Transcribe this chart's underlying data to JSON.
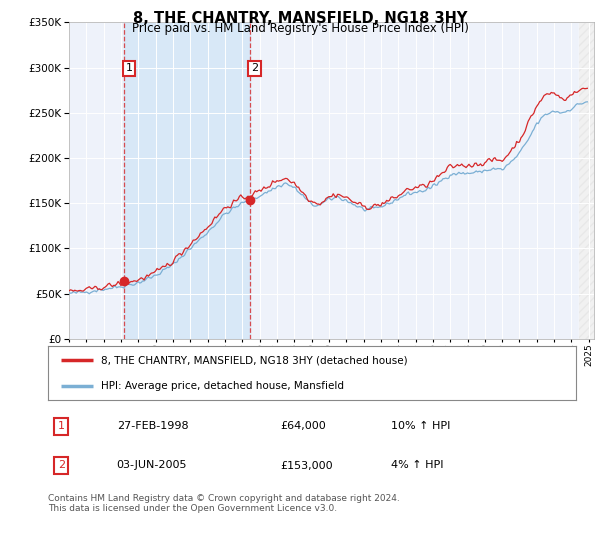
{
  "title": "8, THE CHANTRY, MANSFIELD, NG18 3HY",
  "subtitle": "Price paid vs. HM Land Registry's House Price Index (HPI)",
  "legend_line1": "8, THE CHANTRY, MANSFIELD, NG18 3HY (detached house)",
  "legend_line2": "HPI: Average price, detached house, Mansfield",
  "table_row1_date": "27-FEB-1998",
  "table_row1_price": "£64,000",
  "table_row1_hpi": "10% ↑ HPI",
  "table_row2_date": "03-JUN-2005",
  "table_row2_price": "£153,000",
  "table_row2_hpi": "4% ↑ HPI",
  "footnote": "Contains HM Land Registry data © Crown copyright and database right 2024.\nThis data is licensed under the Open Government Licence v3.0.",
  "sale1_year": 1998.16,
  "sale1_price": 64000,
  "sale2_year": 2005.42,
  "sale2_price": 153000,
  "hpi_color": "#7bafd4",
  "property_color": "#d62728",
  "annotation_color": "#d62728",
  "background_color": "#ffffff",
  "plot_bg_color": "#eef2fa",
  "shade_between_color": "#d0e4f7",
  "ylim": [
    0,
    350000
  ],
  "xlim_start": 1995.0,
  "xlim_end": 2025.3
}
